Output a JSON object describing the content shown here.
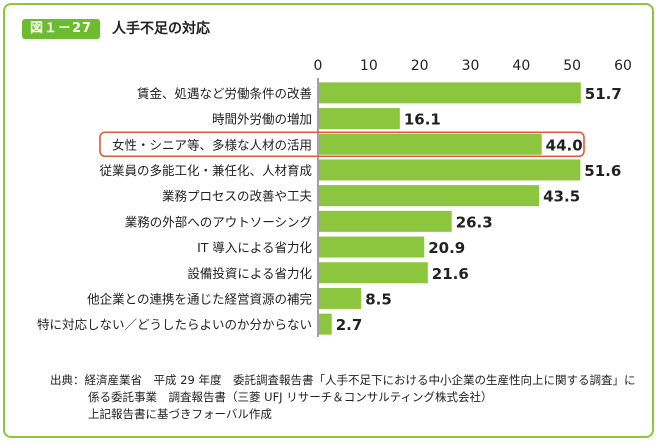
{
  "figure": {
    "badge": "図１－27",
    "title": "人手不足の対応"
  },
  "chart_data": {
    "type": "bar",
    "orientation": "horizontal",
    "title": "人手不足の対応",
    "xlim": [
      0,
      60
    ],
    "ticks": [
      0,
      10,
      20,
      30,
      40,
      50,
      60
    ],
    "tick_position": "top",
    "grid": false,
    "bar_color": "#8cc63f",
    "highlight_color": "#e05a3a",
    "highlight_index": 2,
    "categories": [
      "賃金、処遇など労働条件の改善",
      "時間外労働の増加",
      "女性・シニア等、多様な人材の活用",
      "従業員の多能工化・兼任化、人材育成",
      "業務プロセスの改善や工夫",
      "業務の外部へのアウトソーシング",
      "IT 導入による省力化",
      "設備投資による省力化",
      "他企業との連携を通じた経営資源の補完",
      "特に対応しない／どうしたらよいのか分からない"
    ],
    "values": [
      51.7,
      16.1,
      44.0,
      51.6,
      43.5,
      26.3,
      20.9,
      21.6,
      8.5,
      2.7
    ],
    "value_labels": [
      "51.7",
      "16.1",
      "44.0",
      "51.6",
      "43.5",
      "26.3",
      "20.9",
      "21.6",
      "8.5",
      "2.7"
    ]
  },
  "source": {
    "line1": "出典：経済産業省　平成 29 年度　委託調査報告書「人手不足下における中小企業の生産性向上に関する調査」に",
    "line2": "係る委託事業　調査報告書（三菱 UFJ リサーチ＆コンサルティング株式会社）",
    "line3": "上記報告書に基づきフォーバル作成"
  }
}
